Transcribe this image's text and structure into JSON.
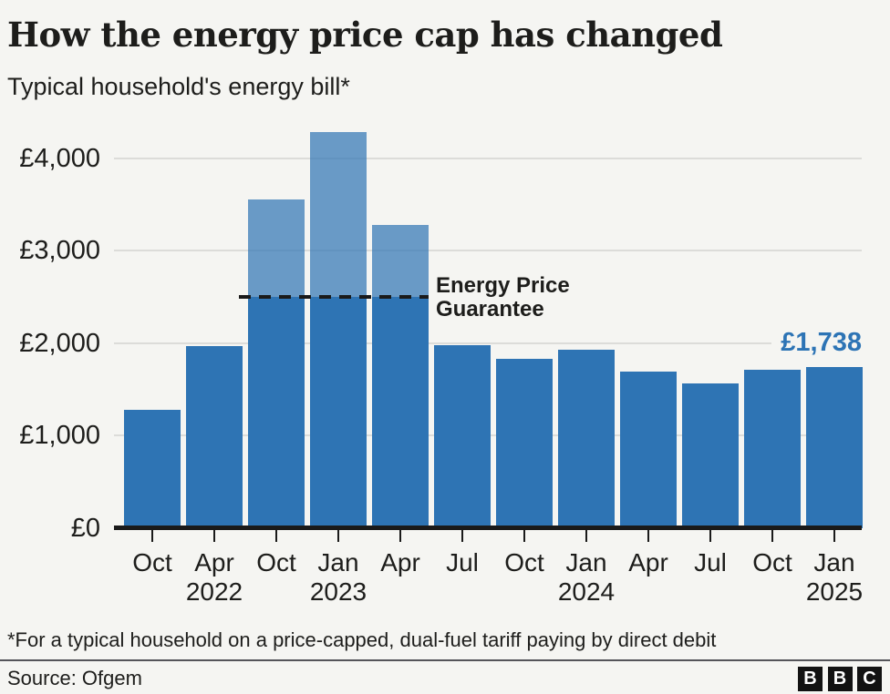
{
  "header": {
    "title": "How the energy price cap has changed",
    "subtitle": "Typical household's energy bill*"
  },
  "chart_data": {
    "type": "bar",
    "title": "How the energy price cap has changed",
    "subtitle": "Typical household's energy bill*",
    "currency": "£",
    "categories": [
      "Oct 2021",
      "Apr 2022",
      "Oct 2022",
      "Jan 2023",
      "Apr 2023",
      "Jul 2023",
      "Oct 2023",
      "Jan 2024",
      "Apr 2024",
      "Jul 2024",
      "Oct 2024",
      "Jan 2025"
    ],
    "tick_months": [
      "Oct",
      "Apr",
      "Oct",
      "Jan",
      "Apr",
      "Jul",
      "Oct",
      "Jan",
      "Apr",
      "Jul",
      "Oct",
      "Jan"
    ],
    "tick_years": [
      "",
      "2022",
      "",
      "2023",
      "",
      "",
      "",
      "2024",
      "",
      "",
      "",
      "2025"
    ],
    "values": [
      1277,
      1971,
      3549,
      4279,
      3280,
      1976,
      1834,
      1928,
      1690,
      1568,
      1717,
      1738
    ],
    "yticks": [
      {
        "value": 0,
        "label": "£0"
      },
      {
        "value": 1000,
        "label": "£1,000"
      },
      {
        "value": 2000,
        "label": "£2,000"
      },
      {
        "value": 3000,
        "label": "£3,000"
      },
      {
        "value": 4000,
        "label": "£4,000"
      }
    ],
    "ylim": [
      0,
      4400
    ],
    "grid": "horizontal light-grey gridlines, bars drawn over them",
    "legend": "none",
    "annotation": {
      "value": 2500,
      "label_line1": "Energy Price",
      "label_line2": "Guarantee",
      "capped_bar_indices": [
        2,
        3,
        4
      ],
      "style": "black dashed line at £2,500; portion of bars above the line shown in translucent lighter blue"
    },
    "last_value_label": "£1,738",
    "colors": {
      "bar": "#2e74b4",
      "bar_translucent": "rgba(46,116,180,0.7)",
      "value_label": "#2d74b5",
      "gridline": "#dcdcd9",
      "axis": "#1a1a1a",
      "background": "#f5f5f2"
    }
  },
  "footnote": "*For a typical household on a price-capped, dual-fuel tariff paying by direct debit",
  "footer": {
    "source": "Source: Ofgem",
    "logo_letters": [
      "B",
      "B",
      "C"
    ]
  }
}
